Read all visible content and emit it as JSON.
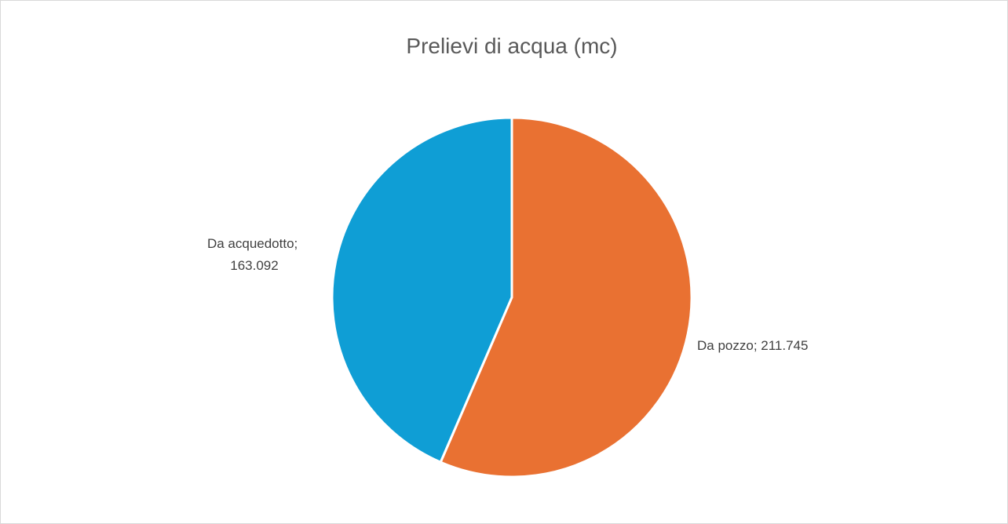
{
  "chart_data": {
    "type": "pie",
    "title": "Prelievi di acqua (mc)",
    "categories": [
      "Da pozzo",
      "Da acquedotto"
    ],
    "values": [
      211745,
      163092
    ],
    "value_labels": [
      "211.745",
      "163.092"
    ],
    "data_label_separator": "; ",
    "colors": [
      "#E97132",
      "#0F9ED5"
    ]
  }
}
